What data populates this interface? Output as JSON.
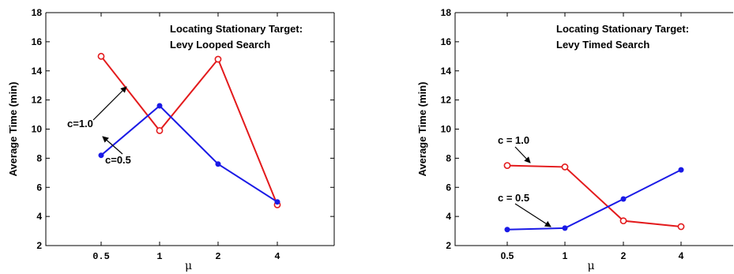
{
  "chart_data": [
    {
      "type": "line",
      "title_lines": [
        "Locating Stationary Target:",
        "Levy Looped Search"
      ],
      "xlabel": "μ",
      "ylabel": "Average Time (min)",
      "categories": [
        "0.5",
        "1",
        "2",
        "4"
      ],
      "ylim": [
        2,
        18
      ],
      "yticks": [
        2,
        4,
        6,
        8,
        10,
        12,
        14,
        16,
        18
      ],
      "grid": false,
      "series": [
        {
          "name": "c=1.0",
          "color": "#e31a1c",
          "marker": "circle-open",
          "values": [
            15.0,
            9.9,
            14.8,
            4.8
          ]
        },
        {
          "name": "c=0.5",
          "color": "#1a1ae6",
          "marker": "dot",
          "values": [
            8.2,
            11.6,
            7.6,
            5.0
          ]
        }
      ],
      "annotations": [
        {
          "text": "c=1.0",
          "series": 0
        },
        {
          "text": "c=0.5",
          "series": 1
        }
      ]
    },
    {
      "type": "line",
      "title_lines": [
        "Locating Stationary Target:",
        "Levy Timed Search"
      ],
      "xlabel": "μ",
      "ylabel": "Average Time (min)",
      "categories": [
        "0.5",
        "1",
        "2",
        "4"
      ],
      "ylim": [
        2,
        18
      ],
      "yticks": [
        2,
        4,
        6,
        8,
        10,
        12,
        14,
        16,
        18
      ],
      "grid": false,
      "series": [
        {
          "name": "c = 1.0",
          "color": "#e31a1c",
          "marker": "circle-open",
          "values": [
            7.5,
            7.4,
            3.7,
            3.3
          ]
        },
        {
          "name": "c = 0.5",
          "color": "#1a1ae6",
          "marker": "dot",
          "values": [
            3.1,
            3.2,
            5.2,
            7.2
          ]
        }
      ],
      "annotations": [
        {
          "text": "c = 1.0",
          "series": 0
        },
        {
          "text": "c = 0.5",
          "series": 1
        }
      ]
    }
  ]
}
